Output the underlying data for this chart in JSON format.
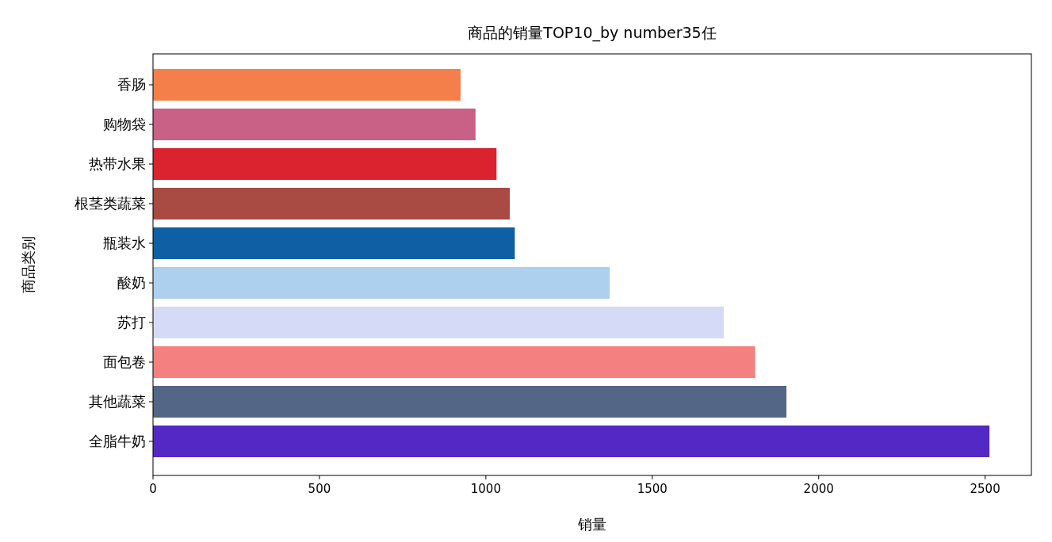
{
  "chart_data": {
    "type": "bar",
    "orientation": "horizontal",
    "title": "商品的销量TOP10_by number35任",
    "xlabel": "销量",
    "ylabel": "商品类别",
    "categories": [
      "香肠",
      "购物袋",
      "热带水果",
      "根茎类蔬菜",
      "瓶装水",
      "酸奶",
      "苏打",
      "面包卷",
      "其他蔬菜",
      "全脂牛奶"
    ],
    "values": [
      924,
      969,
      1032,
      1072,
      1087,
      1372,
      1715,
      1809,
      1903,
      2513
    ],
    "colors": [
      "#f47f4b",
      "#c96085",
      "#da232f",
      "#a94a43",
      "#0f5fa5",
      "#acd0ee",
      "#d5dbf7",
      "#f48080",
      "#536685",
      "#5428c4"
    ],
    "xlim": [
      0,
      2639
    ],
    "xticks": [
      0,
      500,
      1000,
      1500,
      2000,
      2500
    ],
    "grid": false
  }
}
